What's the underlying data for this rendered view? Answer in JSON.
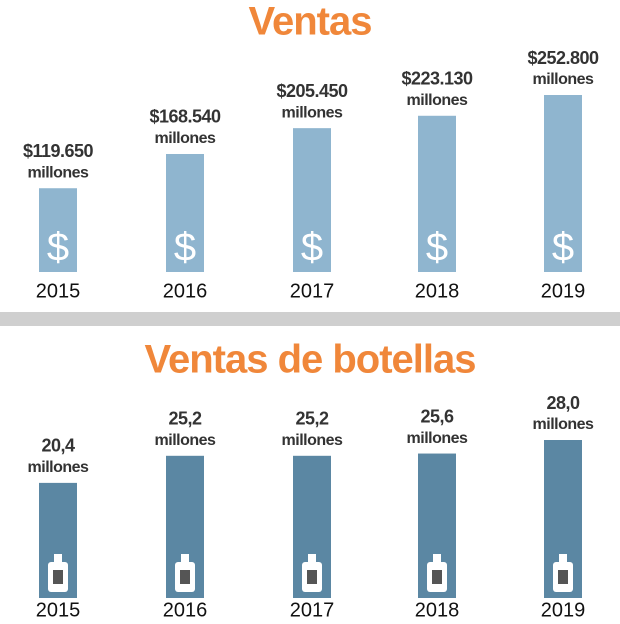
{
  "chart_data": [
    {
      "type": "bar",
      "title": "Ventas",
      "color": "#8fb5cf",
      "icon": "$",
      "categories": [
        "2015",
        "2016",
        "2017",
        "2018",
        "2019"
      ],
      "values": [
        119650,
        168540,
        205450,
        223130,
        252800
      ],
      "value_labels": [
        "$119.650",
        "$168.540",
        "$205.450",
        "$223.130",
        "$252.800"
      ],
      "unit_label": "millones"
    },
    {
      "type": "bar",
      "title": "Ventas de botellas",
      "color": "#5b87a3",
      "categories": [
        "2015",
        "2016",
        "2017",
        "2018",
        "2019"
      ],
      "values": [
        20.4,
        25.2,
        25.2,
        25.6,
        28.0
      ],
      "value_labels": [
        "20,4",
        "25,2",
        "25,2",
        "25,6",
        "28,0"
      ],
      "unit_label": "millones"
    }
  ]
}
